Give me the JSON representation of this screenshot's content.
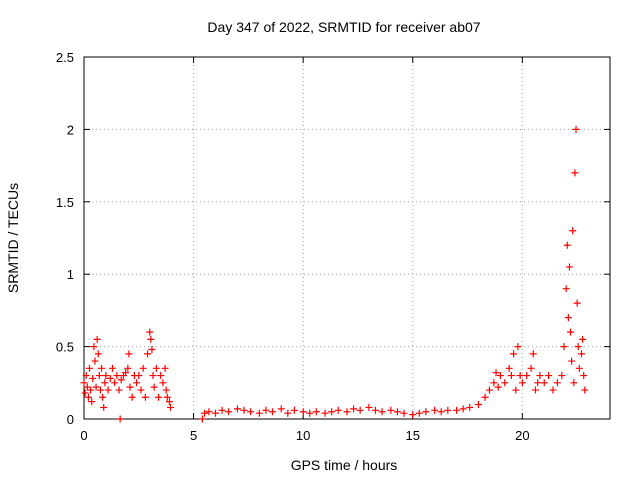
{
  "chart_data": {
    "type": "scatter",
    "title": "Day 347 of 2022, SRMTID for receiver ab07",
    "xlabel": "GPS time / hours",
    "ylabel": "SRMTID / TECUs",
    "xlim": [
      0,
      24
    ],
    "ylim": [
      0,
      2.5
    ],
    "xticks": [
      0,
      5,
      10,
      15,
      20
    ],
    "yticks": [
      0,
      0.5,
      1,
      1.5,
      2,
      2.5
    ],
    "xtick_labels": [
      "0",
      "5",
      "10",
      "15",
      "20"
    ],
    "ytick_labels": [
      "0",
      "0.5",
      "1",
      "1.5",
      "2",
      "2.5"
    ],
    "grid": true,
    "marker": "+",
    "color": "#ff0000",
    "series": [
      {
        "name": "ab07",
        "points": [
          [
            0.0,
            0.25
          ],
          [
            0.05,
            0.18
          ],
          [
            0.1,
            0.3
          ],
          [
            0.15,
            0.22
          ],
          [
            0.2,
            0.15
          ],
          [
            0.25,
            0.35
          ],
          [
            0.3,
            0.2
          ],
          [
            0.35,
            0.12
          ],
          [
            0.4,
            0.28
          ],
          [
            0.45,
            0.5
          ],
          [
            0.5,
            0.4
          ],
          [
            0.55,
            0.22
          ],
          [
            0.6,
            0.55
          ],
          [
            0.65,
            0.45
          ],
          [
            0.7,
            0.3
          ],
          [
            0.75,
            0.2
          ],
          [
            0.8,
            0.35
          ],
          [
            0.85,
            0.15
          ],
          [
            0.9,
            0.08
          ],
          [
            0.95,
            0.25
          ],
          [
            1.0,
            0.3
          ],
          [
            1.1,
            0.2
          ],
          [
            1.2,
            0.28
          ],
          [
            1.3,
            0.35
          ],
          [
            1.4,
            0.25
          ],
          [
            1.5,
            0.3
          ],
          [
            1.6,
            0.2
          ],
          [
            1.65,
            0.0
          ],
          [
            1.7,
            0.27
          ],
          [
            1.8,
            0.3
          ],
          [
            1.9,
            0.32
          ],
          [
            2.0,
            0.35
          ],
          [
            2.05,
            0.45
          ],
          [
            2.1,
            0.22
          ],
          [
            2.2,
            0.15
          ],
          [
            2.3,
            0.3
          ],
          [
            2.4,
            0.25
          ],
          [
            2.5,
            0.3
          ],
          [
            2.6,
            0.2
          ],
          [
            2.7,
            0.35
          ],
          [
            2.8,
            0.15
          ],
          [
            2.9,
            0.45
          ],
          [
            3.0,
            0.6
          ],
          [
            3.05,
            0.55
          ],
          [
            3.1,
            0.48
          ],
          [
            3.15,
            0.3
          ],
          [
            3.2,
            0.22
          ],
          [
            3.3,
            0.35
          ],
          [
            3.4,
            0.15
          ],
          [
            3.5,
            0.3
          ],
          [
            3.6,
            0.25
          ],
          [
            3.7,
            0.35
          ],
          [
            3.75,
            0.2
          ],
          [
            3.8,
            0.15
          ],
          [
            3.9,
            0.12
          ],
          [
            3.95,
            0.08
          ],
          [
            5.4,
            0.0
          ],
          [
            5.5,
            0.04
          ],
          [
            5.7,
            0.05
          ],
          [
            6.0,
            0.04
          ],
          [
            6.3,
            0.06
          ],
          [
            6.6,
            0.05
          ],
          [
            7.0,
            0.07
          ],
          [
            7.3,
            0.06
          ],
          [
            7.6,
            0.05
          ],
          [
            8.0,
            0.04
          ],
          [
            8.3,
            0.06
          ],
          [
            8.6,
            0.05
          ],
          [
            9.0,
            0.07
          ],
          [
            9.3,
            0.04
          ],
          [
            9.6,
            0.06
          ],
          [
            10.0,
            0.05
          ],
          [
            10.3,
            0.04
          ],
          [
            10.6,
            0.05
          ],
          [
            11.0,
            0.04
          ],
          [
            11.3,
            0.05
          ],
          [
            11.6,
            0.06
          ],
          [
            12.0,
            0.05
          ],
          [
            12.3,
            0.07
          ],
          [
            12.6,
            0.06
          ],
          [
            13.0,
            0.08
          ],
          [
            13.3,
            0.06
          ],
          [
            13.6,
            0.05
          ],
          [
            14.0,
            0.06
          ],
          [
            14.3,
            0.05
          ],
          [
            14.6,
            0.04
          ],
          [
            15.0,
            0.03
          ],
          [
            15.3,
            0.04
          ],
          [
            15.6,
            0.05
          ],
          [
            16.0,
            0.06
          ],
          [
            16.3,
            0.05
          ],
          [
            16.6,
            0.06
          ],
          [
            17.0,
            0.06
          ],
          [
            17.3,
            0.07
          ],
          [
            17.6,
            0.08
          ],
          [
            18.0,
            0.1
          ],
          [
            18.3,
            0.15
          ],
          [
            18.5,
            0.2
          ],
          [
            18.7,
            0.25
          ],
          [
            18.8,
            0.32
          ],
          [
            18.9,
            0.22
          ],
          [
            19.0,
            0.3
          ],
          [
            19.2,
            0.25
          ],
          [
            19.4,
            0.35
          ],
          [
            19.5,
            0.3
          ],
          [
            19.6,
            0.45
          ],
          [
            19.7,
            0.2
          ],
          [
            19.8,
            0.5
          ],
          [
            19.9,
            0.3
          ],
          [
            20.0,
            0.25
          ],
          [
            20.2,
            0.3
          ],
          [
            20.4,
            0.35
          ],
          [
            20.5,
            0.45
          ],
          [
            20.6,
            0.2
          ],
          [
            20.7,
            0.25
          ],
          [
            20.8,
            0.3
          ],
          [
            21.0,
            0.25
          ],
          [
            21.2,
            0.3
          ],
          [
            21.4,
            0.2
          ],
          [
            21.6,
            0.25
          ],
          [
            21.8,
            0.3
          ],
          [
            21.9,
            0.5
          ],
          [
            22.0,
            0.9
          ],
          [
            22.05,
            1.2
          ],
          [
            22.1,
            0.7
          ],
          [
            22.15,
            1.05
          ],
          [
            22.2,
            0.6
          ],
          [
            22.25,
            0.4
          ],
          [
            22.3,
            1.3
          ],
          [
            22.35,
            0.25
          ],
          [
            22.4,
            1.7
          ],
          [
            22.45,
            2.0
          ],
          [
            22.5,
            0.8
          ],
          [
            22.55,
            0.5
          ],
          [
            22.6,
            0.35
          ],
          [
            22.7,
            0.45
          ],
          [
            22.75,
            0.55
          ],
          [
            22.8,
            0.3
          ],
          [
            22.85,
            0.2
          ]
        ]
      }
    ]
  }
}
